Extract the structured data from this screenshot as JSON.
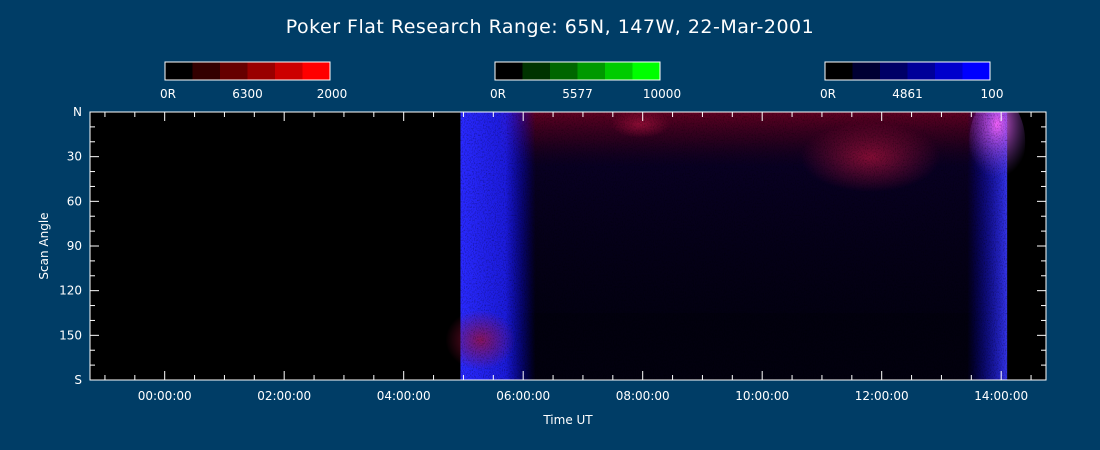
{
  "chart_data": {
    "type": "heatmap",
    "title": "Poker Flat Research Range: 65N, 147W, 22-Mar-2001",
    "xlabel": "Time UT",
    "ylabel": "Scan Angle",
    "x_tick_labels": [
      "00:00:00",
      "02:00:00",
      "04:00:00",
      "06:00:00",
      "08:00:00",
      "10:00:00",
      "12:00:00",
      "14:00:00"
    ],
    "x_tick_hours": [
      0,
      2,
      4,
      6,
      8,
      10,
      12,
      14
    ],
    "xlim_hours": [
      -1.25,
      14.75
    ],
    "y_tick_labels": [
      "N",
      "30",
      "60",
      "90",
      "120",
      "150",
      "S"
    ],
    "y_tick_values": [
      0,
      30,
      60,
      90,
      120,
      150,
      180
    ],
    "ylim": [
      0,
      180
    ],
    "data_start_hour": 4.95,
    "data_end_hour": 14.1,
    "colorbars": [
      {
        "name": "6300",
        "min_label": "0R",
        "max_label": "2000",
        "max": 2000,
        "color": "#ff0000"
      },
      {
        "name": "5577",
        "min_label": "0R",
        "max_label": "10000",
        "max": 10000,
        "color": "#00ff00"
      },
      {
        "name": "4861",
        "min_label": "0R",
        "max_label": "100",
        "max": 100,
        "color": "#0000ff"
      }
    ],
    "colors": {
      "background": "#003d66",
      "axis": "#ffffff",
      "empty": "#000000"
    }
  }
}
